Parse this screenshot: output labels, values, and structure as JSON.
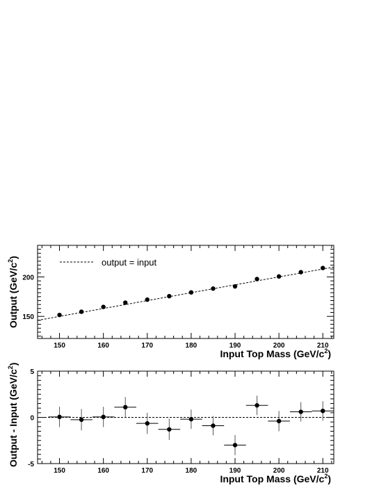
{
  "chart_data": [
    {
      "type": "scatter",
      "xlabel_main": "Input Top Mass (GeV/c",
      "xlabel_sup": "2",
      "xlabel_end": ")",
      "ylabel_main": "Output (GeV/c",
      "ylabel_sup": "2",
      "ylabel_end": ")",
      "xlim": [
        145,
        212.5
      ],
      "ylim": [
        122,
        240
      ],
      "x_ticks": [
        "150",
        "160",
        "170",
        "180",
        "190",
        "200",
        "210"
      ],
      "y_ticks": [
        "150",
        "200"
      ],
      "grid": false,
      "legend": {
        "position": "top-left",
        "label": "output = input",
        "style": "dashed-line"
      },
      "series": [
        {
          "x": [
            150,
            155,
            160,
            165,
            170,
            175,
            180,
            185,
            190,
            195,
            200,
            205,
            210
          ],
          "values": [
            151.8,
            155.9,
            162.0,
            167.4,
            171.2,
            175.6,
            180.4,
            185.2,
            188.0,
            197.3,
            200.6,
            206.0,
            211.3
          ]
        }
      ],
      "reference_line": {
        "from": [
          145,
          145
        ],
        "to": [
          212.5,
          212.5
        ]
      }
    },
    {
      "type": "scatter",
      "xlabel_main": "Input Top Mass (GeV/c",
      "xlabel_sup": "2",
      "xlabel_end": ")",
      "ylabel_main": "Output - Input (GeV/c",
      "ylabel_sup": "2",
      "ylabel_end": ")",
      "xlim": [
        145,
        212.5
      ],
      "ylim": [
        -5,
        5
      ],
      "x_ticks": [
        "150",
        "160",
        "170",
        "180",
        "190",
        "200",
        "210"
      ],
      "y_ticks": [
        "5",
        "0",
        "-5"
      ],
      "grid": false,
      "zero_line": "dashed",
      "series": [
        {
          "x": [
            150,
            155,
            160,
            165,
            170,
            175,
            180,
            185,
            190,
            195,
            200,
            205,
            210
          ],
          "values": [
            0.05,
            -0.25,
            0.05,
            1.1,
            -0.65,
            -1.3,
            -0.2,
            -0.9,
            -3.0,
            1.3,
            -0.4,
            0.6,
            0.7
          ],
          "x_err": [
            2.5,
            2.5,
            2.5,
            2.5,
            2.5,
            2.5,
            2.5,
            2.5,
            2.5,
            2.5,
            2.5,
            2.5,
            2.5
          ],
          "y_err": [
            1.1,
            1.15,
            1.1,
            1.1,
            1.15,
            1.15,
            1.05,
            1.05,
            1.1,
            1.05,
            1.1,
            1.05,
            1.05
          ]
        }
      ]
    }
  ]
}
